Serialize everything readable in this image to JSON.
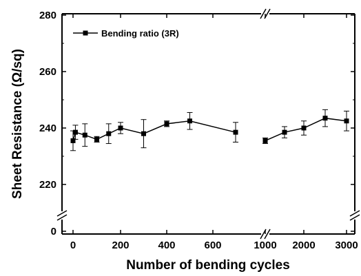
{
  "chart_data": {
    "type": "line",
    "xlabel": "Number of bending cycles",
    "ylabel": "Sheet Resistance (Ω/sq)",
    "legend": {
      "position": "top-left",
      "entries": [
        "Bending ratio (3R)"
      ]
    },
    "x_axis": {
      "broken": true,
      "ticks": [
        "0",
        "200",
        "400",
        "600",
        "1000",
        "2000",
        "3000"
      ]
    },
    "y_axis": {
      "broken": true,
      "ticks": [
        "0",
        "220",
        "240",
        "260",
        "280"
      ],
      "ylim": [
        210,
        280
      ]
    },
    "series": [
      {
        "name": "Bending ratio (3R)",
        "color": "#000000",
        "marker": "square",
        "segments": [
          [
            {
              "x": 0,
              "y": 235.5,
              "err": 3.5
            },
            {
              "x": 10,
              "y": 238.5,
              "err": 2.5
            },
            {
              "x": 50,
              "y": 237.5,
              "err": 4.0
            },
            {
              "x": 100,
              "y": 236.0,
              "err": 1.0
            },
            {
              "x": 150,
              "y": 238.0,
              "err": 3.5
            },
            {
              "x": 200,
              "y": 240.0,
              "err": 2.0
            },
            {
              "x": 300,
              "y": 238.0,
              "err": 5.0
            },
            {
              "x": 400,
              "y": 241.5,
              "err": 1.0
            },
            {
              "x": 500,
              "y": 242.5,
              "err": 3.0
            },
            {
              "x": 700,
              "y": 238.5,
              "err": 3.5
            }
          ],
          [
            {
              "x": 1000,
              "y": 235.5,
              "err": 1.0
            },
            {
              "x": 1500,
              "y": 238.5,
              "err": 2.0
            },
            {
              "x": 2000,
              "y": 240.0,
              "err": 2.5
            },
            {
              "x": 2500,
              "y": 243.5,
              "err": 3.0
            },
            {
              "x": 3000,
              "y": 242.5,
              "err": 3.5
            }
          ]
        ]
      }
    ]
  }
}
